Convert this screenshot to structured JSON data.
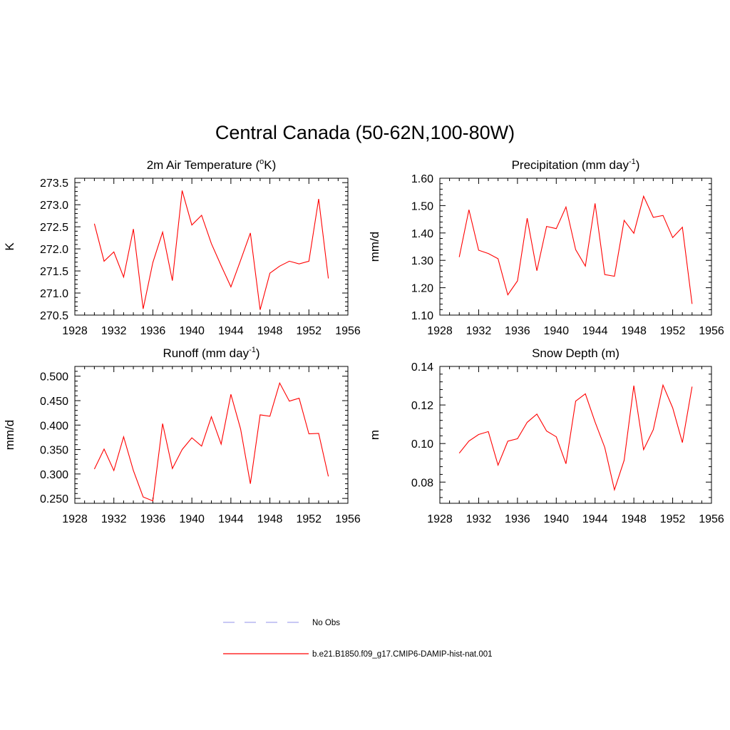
{
  "figure": {
    "title": "Central Canada (50-62N,100-80W)"
  },
  "legend": {
    "items": [
      {
        "label": "No Obs",
        "color": "#a7a7ee",
        "dashed": true
      },
      {
        "label": "b.e21.B1850.f09_g17.CMIP6-DAMIP-hist-nat.001",
        "color": "#ff0000",
        "dashed": false
      }
    ]
  },
  "chart_data": [
    {
      "type": "line",
      "title": "2m Air Temperature (°K)",
      "title_text": "2m Air Temperature (",
      "title_sup": "o",
      "title_tail": "K)",
      "xlabel": "",
      "ylabel": "K",
      "xlim": [
        1928,
        1956
      ],
      "ylim": [
        270.5,
        273.6
      ],
      "xticks": [
        "1928",
        "1932",
        "1936",
        "1940",
        "1944",
        "1948",
        "1952",
        "1956"
      ],
      "yticks": [
        "270.5",
        "271.0",
        "271.5",
        "272.0",
        "272.5",
        "273.0",
        "273.5"
      ],
      "ytick_values": [
        270.5,
        271.0,
        271.5,
        272.0,
        272.5,
        273.0,
        273.5
      ],
      "series": [
        {
          "name": "b.e21.B1850.f09_g17.CMIP6-DAMIP-hist-nat.001",
          "color": "#ff0000",
          "x": [
            1930,
            1931,
            1932,
            1933,
            1934,
            1935,
            1936,
            1937,
            1938,
            1939,
            1940,
            1941,
            1942,
            1943,
            1944,
            1945,
            1946,
            1947,
            1948,
            1949,
            1950,
            1951,
            1952,
            1953,
            1954
          ],
          "y": [
            272.57,
            271.72,
            271.93,
            271.36,
            272.45,
            270.64,
            271.69,
            272.38,
            271.28,
            273.32,
            272.54,
            272.76,
            272.12,
            271.62,
            271.14,
            271.74,
            272.36,
            270.62,
            271.45,
            271.61,
            271.72,
            271.66,
            271.72,
            273.13,
            271.33
          ]
        }
      ]
    },
    {
      "type": "line",
      "title": "Precipitation (mm day-1)",
      "title_text": "Precipitation (mm day",
      "title_sup": "-1",
      "title_tail": ")",
      "xlabel": "",
      "ylabel": "mm/d",
      "xlim": [
        1928,
        1956
      ],
      "ylim": [
        1.1,
        1.6
      ],
      "xticks": [
        "1928",
        "1932",
        "1936",
        "1940",
        "1944",
        "1948",
        "1952",
        "1956"
      ],
      "yticks": [
        "1.10",
        "1.20",
        "1.30",
        "1.40",
        "1.50",
        "1.60"
      ],
      "ytick_values": [
        1.1,
        1.2,
        1.3,
        1.4,
        1.5,
        1.6
      ],
      "series": [
        {
          "name": "b.e21.B1850.f09_g17.CMIP6-DAMIP-hist-nat.001",
          "color": "#ff0000",
          "x": [
            1930,
            1931,
            1932,
            1933,
            1934,
            1935,
            1936,
            1937,
            1938,
            1939,
            1940,
            1941,
            1942,
            1943,
            1944,
            1945,
            1946,
            1947,
            1948,
            1949,
            1950,
            1951,
            1952,
            1953,
            1954
          ],
          "y": [
            1.312,
            1.485,
            1.337,
            1.325,
            1.306,
            1.174,
            1.225,
            1.454,
            1.262,
            1.424,
            1.416,
            1.495,
            1.339,
            1.279,
            1.508,
            1.248,
            1.242,
            1.446,
            1.399,
            1.534,
            1.457,
            1.464,
            1.383,
            1.421,
            1.141
          ]
        }
      ]
    },
    {
      "type": "line",
      "title": "Runoff (mm day-1)",
      "title_text": "Runoff (mm day",
      "title_sup": "-1",
      "title_tail": ")",
      "xlabel": "",
      "ylabel": "mm/d",
      "xlim": [
        1928,
        1956
      ],
      "ylim": [
        0.24,
        0.52
      ],
      "xticks": [
        "1928",
        "1932",
        "1936",
        "1940",
        "1944",
        "1948",
        "1952",
        "1956"
      ],
      "yticks": [
        "0.250",
        "0.300",
        "0.350",
        "0.400",
        "0.450",
        "0.500"
      ],
      "ytick_values": [
        0.25,
        0.3,
        0.35,
        0.4,
        0.45,
        0.5
      ],
      "series": [
        {
          "name": "b.e21.B1850.f09_g17.CMIP6-DAMIP-hist-nat.001",
          "color": "#ff0000",
          "x": [
            1930,
            1931,
            1932,
            1933,
            1934,
            1935,
            1936,
            1937,
            1938,
            1939,
            1940,
            1941,
            1942,
            1943,
            1944,
            1945,
            1946,
            1947,
            1948,
            1949,
            1950,
            1951,
            1952,
            1953,
            1954
          ],
          "y": [
            0.31,
            0.351,
            0.307,
            0.376,
            0.307,
            0.253,
            0.245,
            0.403,
            0.311,
            0.35,
            0.374,
            0.357,
            0.417,
            0.361,
            0.463,
            0.392,
            0.28,
            0.421,
            0.418,
            0.486,
            0.449,
            0.455,
            0.382,
            0.383,
            0.295
          ]
        }
      ]
    },
    {
      "type": "line",
      "title": "Snow Depth (m)",
      "title_text": "Snow Depth (m)",
      "title_sup": "",
      "title_tail": "",
      "xlabel": "",
      "ylabel": "m",
      "xlim": [
        1928,
        1956
      ],
      "ylim": [
        0.069,
        0.14
      ],
      "xticks": [
        "1928",
        "1932",
        "1936",
        "1940",
        "1944",
        "1948",
        "1952",
        "1956"
      ],
      "yticks": [
        "0.08",
        "0.10",
        "0.12",
        "0.14"
      ],
      "ytick_values": [
        0.08,
        0.1,
        0.12,
        0.14
      ],
      "series": [
        {
          "name": "b.e21.B1850.f09_g17.CMIP6-DAMIP-hist-nat.001",
          "color": "#ff0000",
          "x": [
            1930,
            1931,
            1932,
            1933,
            1934,
            1935,
            1936,
            1937,
            1938,
            1939,
            1940,
            1941,
            1942,
            1943,
            1944,
            1945,
            1946,
            1947,
            1948,
            1949,
            1950,
            1951,
            1952,
            1953,
            1954
          ],
          "y": [
            0.095,
            0.1013,
            0.1047,
            0.1062,
            0.0888,
            0.1012,
            0.1025,
            0.111,
            0.1153,
            0.1065,
            0.1035,
            0.0895,
            0.122,
            0.1258,
            0.1112,
            0.098,
            0.076,
            0.0913,
            0.13,
            0.0968,
            0.1072,
            0.1303,
            0.1185,
            0.1005,
            0.1295
          ]
        }
      ]
    }
  ]
}
